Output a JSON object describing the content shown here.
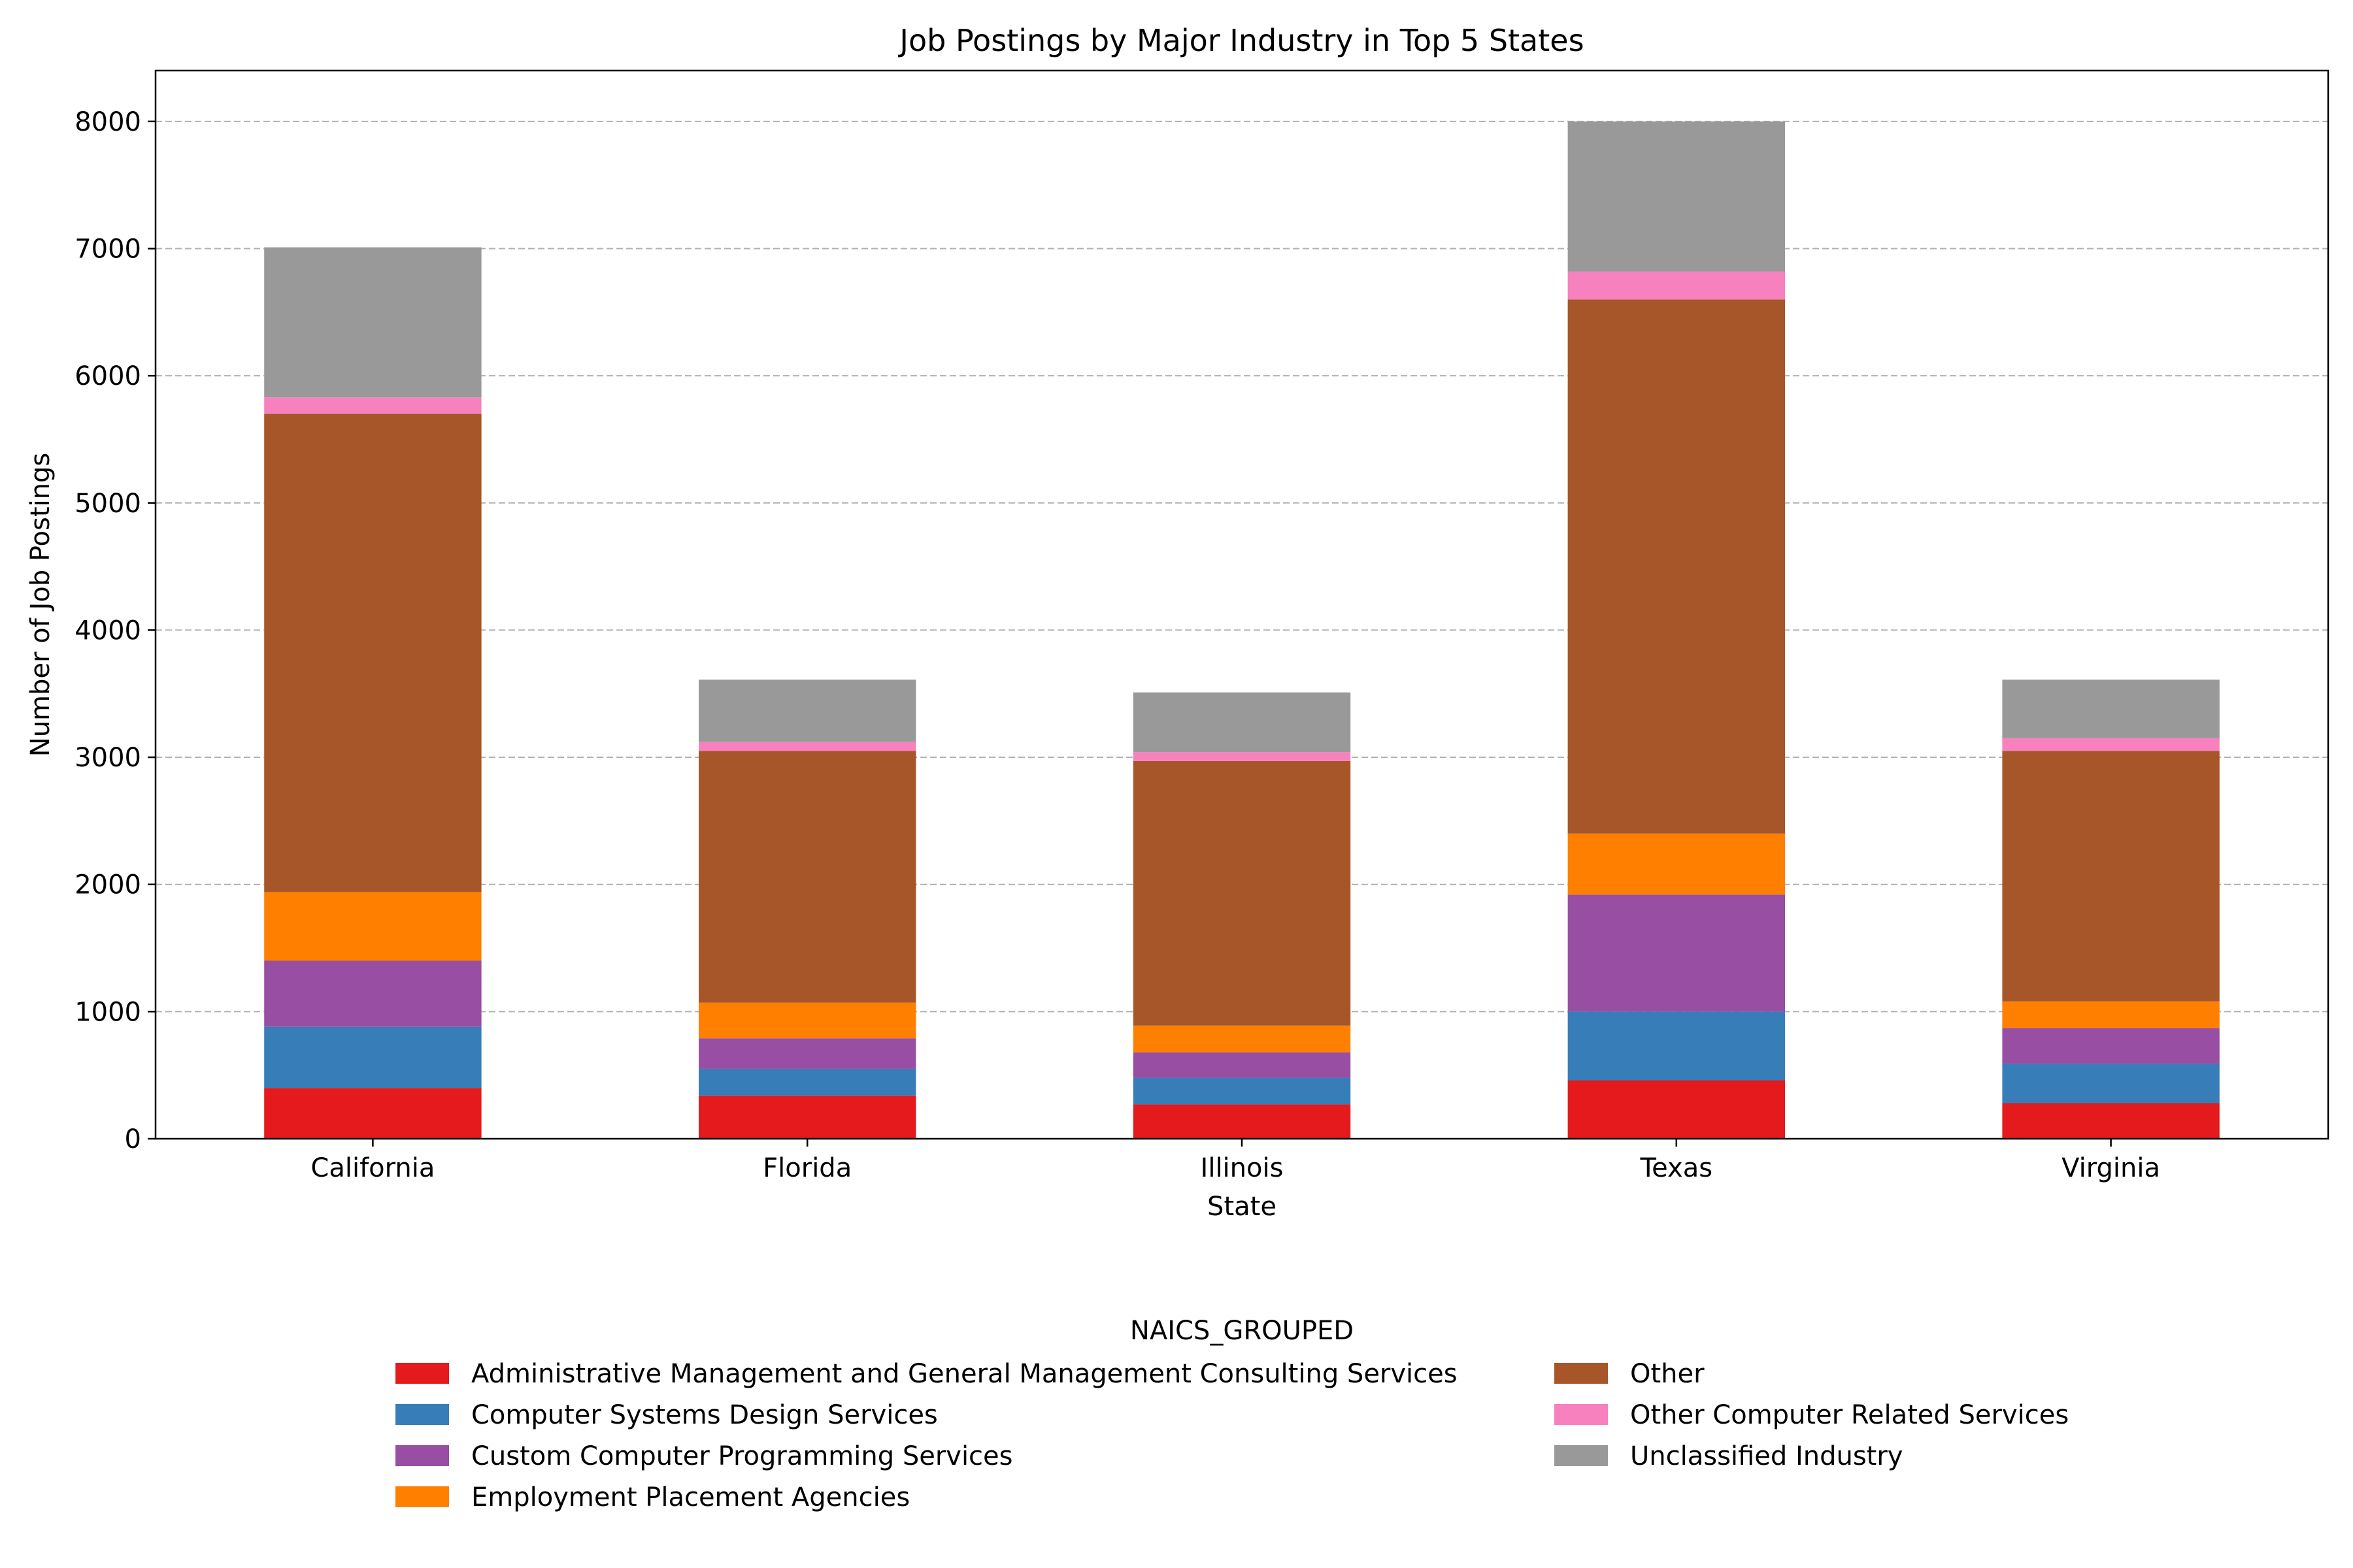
{
  "chart_data": {
    "type": "bar",
    "stacked": true,
    "title": "Job Postings by Major Industry in Top 5 States",
    "xlabel": "State",
    "ylabel": "Number of Job Postings",
    "ylim": [
      0,
      8400
    ],
    "yticks": [
      0,
      1000,
      2000,
      3000,
      4000,
      5000,
      6000,
      7000,
      8000
    ],
    "grid": "y-dashed",
    "categories": [
      "California",
      "Florida",
      "Illinois",
      "Texas",
      "Virginia"
    ],
    "legend": {
      "title": "NAICS_GROUPED",
      "placement": "bottom-center",
      "columns": 2
    },
    "series": [
      {
        "name": "Administrative Management and General Management Consulting Services",
        "color": "#e41a1c",
        "values": [
          400,
          340,
          270,
          460,
          280
        ]
      },
      {
        "name": "Computer Systems Design Services",
        "color": "#377eb8",
        "values": [
          480,
          210,
          210,
          540,
          310
        ]
      },
      {
        "name": "Custom Computer Programming Services",
        "color": "#984ea3",
        "values": [
          520,
          240,
          200,
          920,
          280
        ]
      },
      {
        "name": "Employment Placement Agencies",
        "color": "#ff7f00",
        "values": [
          540,
          280,
          210,
          480,
          210
        ]
      },
      {
        "name": "Other",
        "color": "#a65628",
        "values": [
          3760,
          1980,
          2080,
          4200,
          1970
        ]
      },
      {
        "name": "Other Computer Related Services",
        "color": "#f781bf",
        "values": [
          130,
          70,
          70,
          220,
          100
        ]
      },
      {
        "name": "Unclassified Industry",
        "color": "#999999",
        "values": [
          1180,
          490,
          470,
          1180,
          460
        ]
      }
    ]
  }
}
